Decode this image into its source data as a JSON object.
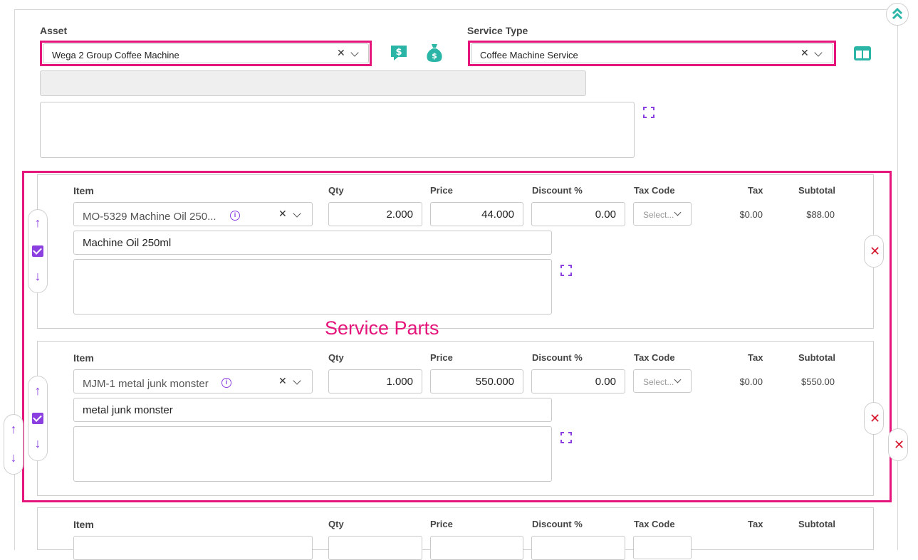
{
  "header": {
    "asset_label": "Asset",
    "asset_value": "Wega 2 Group Coffee Machine",
    "service_type_label": "Service Type",
    "service_type_value": "Coffee Machine Service",
    "clear_glyph": "✕",
    "icons": [
      "chevrons-up-icon",
      "chat-dollar-icon",
      "money-bag-icon",
      "columns-icon"
    ]
  },
  "annotation": {
    "service_parts": "Service Parts"
  },
  "columns": {
    "item": "Item",
    "qty": "Qty",
    "price": "Price",
    "discount": "Discount %",
    "tax_code": "Tax Code",
    "tax": "Tax",
    "subtotal": "Subtotal"
  },
  "parts": [
    {
      "item": "MO-5329 Machine Oil 250...",
      "qty": "2.000",
      "price": "44.000",
      "discount": "0.00",
      "tax_code_placeholder": "Select...",
      "tax": "$0.00",
      "subtotal": "$88.00",
      "description": "Machine Oil 250ml",
      "checked": true
    },
    {
      "item": "MJM-1 metal junk monster",
      "qty": "1.000",
      "price": "550.000",
      "discount": "0.00",
      "tax_code_placeholder": "Select...",
      "tax": "$0.00",
      "subtotal": "$550.00",
      "description": "metal junk monster",
      "checked": true
    }
  ],
  "glyphs": {
    "up": "↑",
    "down": "↓",
    "delete": "✕",
    "info": "i"
  },
  "colors": {
    "accent": "#8b3fe0",
    "highlight": "#e5157c",
    "teal": "#2bb5a6",
    "danger": "#d6182e"
  }
}
